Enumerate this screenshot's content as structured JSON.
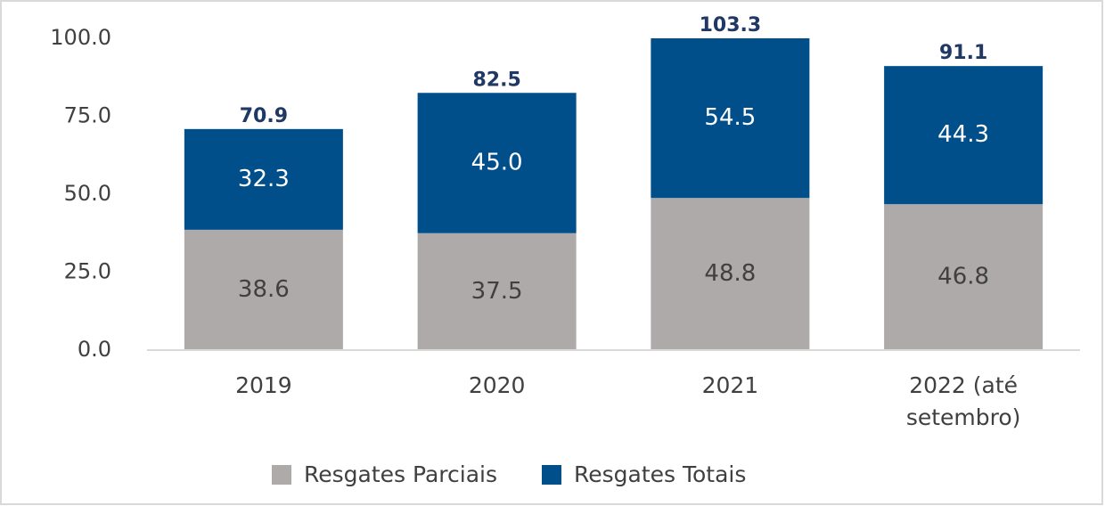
{
  "chart_data": {
    "type": "stacked_bar",
    "categories": [
      "2019",
      "2020",
      "2021",
      "2022 (até setembro)"
    ],
    "series": [
      {
        "name": "Resgates Parciais",
        "color": "#aeaaaa",
        "label_color": "#404040",
        "values": [
          38.6,
          37.5,
          48.8,
          46.8
        ],
        "value_labels": [
          "38.6",
          "37.5",
          "48.8",
          "46.8"
        ]
      },
      {
        "name": "Resgates Totais",
        "color": "#004f8b",
        "label_color": "#ffffff",
        "values": [
          32.3,
          45.0,
          54.5,
          44.3
        ],
        "value_labels": [
          "32.3",
          "45.0",
          "54.5",
          "44.3"
        ]
      }
    ],
    "totals": [
      70.9,
      82.5,
      103.3,
      91.1
    ],
    "totals_color": "#1f3864",
    "ylim": [
      0,
      100
    ],
    "yticks": [
      {
        "value": 0,
        "label": "0.0"
      },
      {
        "value": 25,
        "label": "25.0"
      },
      {
        "value": 50,
        "label": "50.0"
      },
      {
        "value": 75,
        "label": "75.0"
      },
      {
        "value": 100,
        "label": "100.0"
      }
    ],
    "legend": "bottom"
  }
}
